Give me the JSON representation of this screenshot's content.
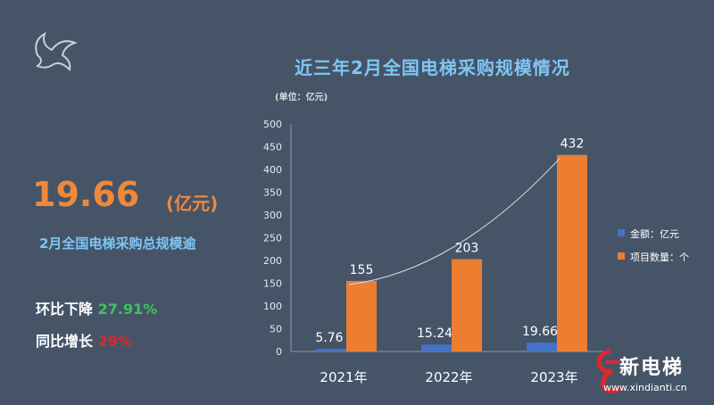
{
  "logo": {
    "caption": "",
    "icon": "bird-logo-icon"
  },
  "headline": {
    "value": "19.66",
    "unit": "(亿元)",
    "subtitle": "2月全国电梯采购总规模逾"
  },
  "stats": {
    "mom_label": "环比下降",
    "mom_value": "27.91%",
    "yoy_label": "同比增长",
    "yoy_value": "29%"
  },
  "brand": {
    "name": "新电梯",
    "url": "www.xindianti.cn",
    "icon": "brand-e-icon"
  },
  "colors": {
    "amount": "#4472c4",
    "count": "#ed7d31",
    "title": "#7ec6f2",
    "background": "#465468"
  },
  "chart_data": {
    "type": "bar",
    "title": "近三年2月全国电梯采购规模情况",
    "unit_note": "(单位：亿元)",
    "categories": [
      "2021年",
      "2022年",
      "2023年"
    ],
    "series": [
      {
        "name": "金额：亿元",
        "values": [
          5.76,
          15.24,
          19.66
        ],
        "labels": [
          "5.76",
          "15.24",
          "19.66"
        ]
      },
      {
        "name": "项目数量：个",
        "values": [
          155,
          203,
          432
        ],
        "labels": [
          "155",
          "203",
          "432"
        ]
      }
    ],
    "ylim": [
      0,
      500
    ],
    "yticks": [
      "0",
      "50",
      "100",
      "150",
      "200",
      "250",
      "300",
      "350",
      "400",
      "450",
      "500"
    ],
    "grid": false,
    "trendline": true,
    "legend": "right"
  }
}
